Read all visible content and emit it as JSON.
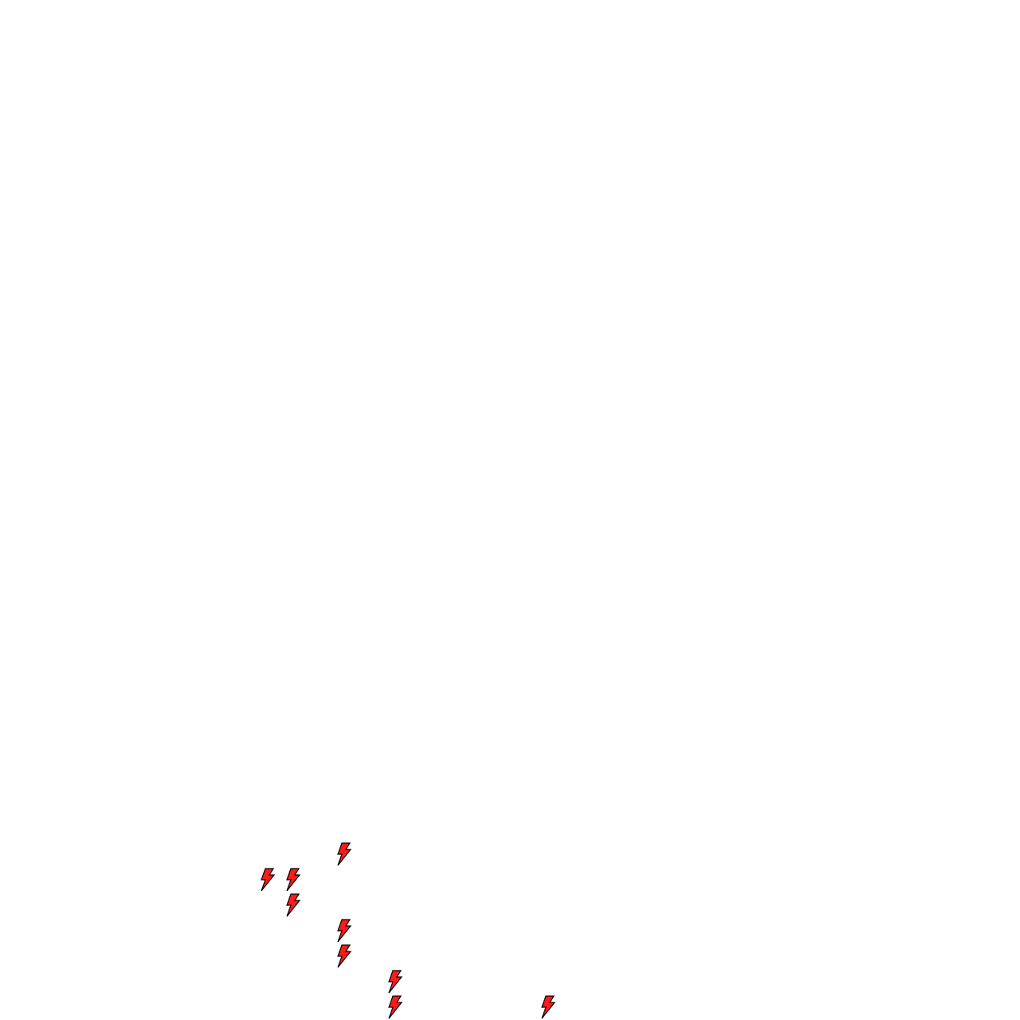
{
  "canvas": {
    "background": "#ffffff"
  },
  "icon": {
    "name": "lightning-bolt-icon",
    "fill": "#ff1a1a",
    "stroke": "#000000",
    "count": 9
  }
}
